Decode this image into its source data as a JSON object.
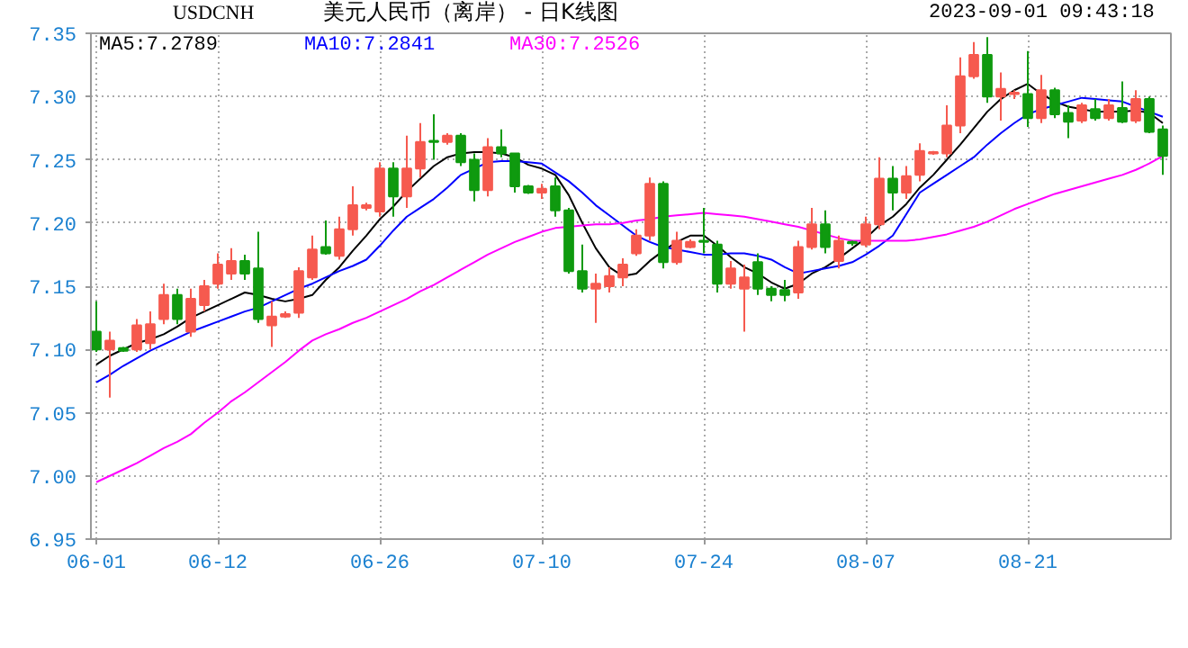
{
  "chart_data": {
    "type": "candlestick",
    "title": "美元人民币（离岸） - 日K线图",
    "annotations": [
      "USDCNH",
      "2023-09-01 09:43:18"
    ],
    "categories": [
      "06-01",
      null,
      null,
      null,
      null,
      null,
      null,
      null,
      null,
      "06-12",
      null,
      null,
      null,
      null,
      null,
      null,
      null,
      null,
      null,
      null,
      null,
      "06-26",
      null,
      null,
      null,
      null,
      null,
      null,
      null,
      null,
      null,
      null,
      null,
      "07-10",
      null,
      null,
      null,
      null,
      null,
      null,
      null,
      null,
      null,
      null,
      null,
      "07-24",
      null,
      null,
      null,
      null,
      null,
      null,
      null,
      null,
      null,
      null,
      null,
      "08-07",
      null,
      null,
      null,
      null,
      null,
      null,
      null,
      null,
      null,
      null,
      null,
      "08-21",
      null,
      null,
      null,
      null,
      null,
      null,
      null,
      null,
      null,
      null
    ],
    "ohlc": [
      [
        7.114,
        7.138,
        7.098,
        7.1
      ],
      [
        7.1,
        7.114,
        7.062,
        7.107
      ],
      [
        7.101,
        7.102,
        7.098,
        7.099
      ],
      [
        7.1,
        7.124,
        7.098,
        7.119
      ],
      [
        7.105,
        7.13,
        7.1,
        7.12
      ],
      [
        7.124,
        7.152,
        7.12,
        7.143
      ],
      [
        7.143,
        7.148,
        7.12,
        7.124
      ],
      [
        7.114,
        7.148,
        7.11,
        7.14
      ],
      [
        7.135,
        7.155,
        7.13,
        7.15
      ],
      [
        7.152,
        7.176,
        7.148,
        7.167
      ],
      [
        7.16,
        7.18,
        7.155,
        7.17
      ],
      [
        7.17,
        7.175,
        7.155,
        7.16
      ],
      [
        7.164,
        7.193,
        7.121,
        7.124
      ],
      [
        7.119,
        7.138,
        7.102,
        7.126
      ],
      [
        7.126,
        7.13,
        7.125,
        7.128
      ],
      [
        7.129,
        7.165,
        7.125,
        7.162
      ],
      [
        7.157,
        7.19,
        7.155,
        7.179
      ],
      [
        7.181,
        7.202,
        7.175,
        7.176
      ],
      [
        7.174,
        7.205,
        7.171,
        7.195
      ],
      [
        7.195,
        7.229,
        7.19,
        7.214
      ],
      [
        7.212,
        7.216,
        7.21,
        7.214
      ],
      [
        7.209,
        7.248,
        7.205,
        7.243
      ],
      [
        7.243,
        7.248,
        7.205,
        7.221
      ],
      [
        7.221,
        7.269,
        7.212,
        7.243
      ],
      [
        7.243,
        7.279,
        7.236,
        7.264
      ],
      [
        7.265,
        7.286,
        7.25,
        7.264
      ],
      [
        7.264,
        7.271,
        7.262,
        7.269
      ],
      [
        7.269,
        7.271,
        7.245,
        7.248
      ],
      [
        7.25,
        7.255,
        7.217,
        7.226
      ],
      [
        7.226,
        7.267,
        7.221,
        7.26
      ],
      [
        7.26,
        7.274,
        7.252,
        7.255
      ],
      [
        7.255,
        7.255,
        7.224,
        7.229
      ],
      [
        7.229,
        7.23,
        7.223,
        7.224
      ],
      [
        7.224,
        7.231,
        7.219,
        7.227
      ],
      [
        7.229,
        7.236,
        7.205,
        7.21
      ],
      [
        7.21,
        7.212,
        7.16,
        7.162
      ],
      [
        7.162,
        7.183,
        7.145,
        7.148
      ],
      [
        7.148,
        7.16,
        7.121,
        7.152
      ],
      [
        7.15,
        7.165,
        7.145,
        7.158
      ],
      [
        7.157,
        7.172,
        7.15,
        7.167
      ],
      [
        7.176,
        7.195,
        7.174,
        7.19
      ],
      [
        7.19,
        7.236,
        7.186,
        7.231
      ],
      [
        7.231,
        7.233,
        7.164,
        7.169
      ],
      [
        7.169,
        7.193,
        7.167,
        7.186
      ],
      [
        7.181,
        7.187,
        7.18,
        7.185
      ],
      [
        7.186,
        7.212,
        7.176,
        7.185
      ],
      [
        7.183,
        7.186,
        7.145,
        7.152
      ],
      [
        7.152,
        7.17,
        7.148,
        7.164
      ],
      [
        7.148,
        7.167,
        7.114,
        7.157
      ],
      [
        7.169,
        7.176,
        7.143,
        7.148
      ],
      [
        7.148,
        7.15,
        7.138,
        7.143
      ],
      [
        7.147,
        7.155,
        7.138,
        7.143
      ],
      [
        7.145,
        7.186,
        7.14,
        7.181
      ],
      [
        7.181,
        7.212,
        7.179,
        7.199
      ],
      [
        7.199,
        7.21,
        7.176,
        7.181
      ],
      [
        7.17,
        7.19,
        7.164,
        7.186
      ],
      [
        7.185,
        7.186,
        7.182,
        7.184
      ],
      [
        7.183,
        7.205,
        7.181,
        7.199
      ],
      [
        7.199,
        7.252,
        7.195,
        7.235
      ],
      [
        7.235,
        7.245,
        7.21,
        7.224
      ],
      [
        7.224,
        7.245,
        7.219,
        7.237
      ],
      [
        7.238,
        7.263,
        7.233,
        7.257
      ],
      [
        7.255,
        7.257,
        7.254,
        7.256
      ],
      [
        7.255,
        7.293,
        7.252,
        7.277
      ],
      [
        7.277,
        7.331,
        7.271,
        7.316
      ],
      [
        7.316,
        7.343,
        7.314,
        7.333
      ],
      [
        7.333,
        7.347,
        7.295,
        7.3
      ],
      [
        7.3,
        7.319,
        7.281,
        7.306
      ],
      [
        7.302,
        7.305,
        7.298,
        7.303
      ],
      [
        7.302,
        7.336,
        7.276,
        7.283
      ],
      [
        7.283,
        7.317,
        7.279,
        7.305
      ],
      [
        7.305,
        7.307,
        7.283,
        7.286
      ],
      [
        7.287,
        7.293,
        7.267,
        7.28
      ],
      [
        7.281,
        7.295,
        7.279,
        7.293
      ],
      [
        7.29,
        7.298,
        7.281,
        7.283
      ],
      [
        7.283,
        7.298,
        7.281,
        7.293
      ],
      [
        7.291,
        7.312,
        7.279,
        7.28
      ],
      [
        7.281,
        7.305,
        7.279,
        7.298
      ],
      [
        7.298,
        7.3,
        7.271,
        7.272
      ],
      [
        7.274,
        7.277,
        7.238,
        7.253
      ]
    ],
    "colors": [
      "#0f9a0f",
      "#f65a4f",
      "#0f9a0f",
      "#f65a4f",
      "#f65a4f",
      "#f65a4f",
      "#0f9a0f",
      "#f65a4f",
      "#f65a4f",
      "#f65a4f",
      "#f65a4f",
      "#0f9a0f",
      "#0f9a0f",
      "#f65a4f",
      "#f65a4f",
      "#f65a4f",
      "#f65a4f",
      "#0f9a0f",
      "#f65a4f",
      "#f65a4f",
      "#f65a4f",
      "#f65a4f",
      "#0f9a0f",
      "#f65a4f",
      "#f65a4f",
      "#0f9a0f",
      "#f65a4f",
      "#0f9a0f",
      "#0f9a0f",
      "#f65a4f",
      "#0f9a0f",
      "#0f9a0f",
      "#0f9a0f",
      "#f65a4f",
      "#0f9a0f",
      "#0f9a0f",
      "#0f9a0f",
      "#f65a4f",
      "#f65a4f",
      "#f65a4f",
      "#f65a4f",
      "#f65a4f",
      "#0f9a0f",
      "#f65a4f",
      "#f65a4f",
      "#0f9a0f",
      "#0f9a0f",
      "#f65a4f",
      "#f65a4f",
      "#0f9a0f",
      "#0f9a0f",
      "#0f9a0f",
      "#f65a4f",
      "#f65a4f",
      "#0f9a0f",
      "#f65a4f",
      "#0f9a0f",
      "#f65a4f",
      "#f65a4f",
      "#0f9a0f",
      "#f65a4f",
      "#f65a4f",
      "#f65a4f",
      "#f65a4f",
      "#f65a4f",
      "#f65a4f",
      "#0f9a0f",
      "#f65a4f",
      "#f65a4f",
      "#0f9a0f",
      "#f65a4f",
      "#0f9a0f",
      "#0f9a0f",
      "#f65a4f",
      "#0f9a0f",
      "#f65a4f",
      "#0f9a0f",
      "#f65a4f",
      "#0f9a0f",
      "#0f9a0f"
    ],
    "series": [
      {
        "type": "line",
        "name": "MA5:7.2789",
        "color": "#000000",
        "values": [
          7.088,
          7.095,
          7.1,
          7.105,
          7.108,
          7.112,
          7.118,
          7.125,
          7.13,
          7.135,
          7.14,
          7.145,
          7.143,
          7.14,
          7.138,
          7.14,
          7.143,
          7.155,
          7.165,
          7.178,
          7.19,
          7.203,
          7.213,
          7.225,
          7.235,
          7.245,
          7.252,
          7.255,
          7.256,
          7.256,
          7.255,
          7.252,
          7.246,
          7.243,
          7.238,
          7.222,
          7.2,
          7.18,
          7.165,
          7.158,
          7.16,
          7.17,
          7.178,
          7.185,
          7.19,
          7.19,
          7.182,
          7.173,
          7.165,
          7.16,
          7.153,
          7.148,
          7.152,
          7.16,
          7.165,
          7.172,
          7.18,
          7.188,
          7.198,
          7.205,
          7.215,
          7.228,
          7.238,
          7.25,
          7.262,
          7.275,
          7.288,
          7.298,
          7.305,
          7.31,
          7.302,
          7.296,
          7.292,
          7.29,
          7.288,
          7.288,
          7.288,
          7.289,
          7.287,
          7.279
        ]
      },
      {
        "type": "line",
        "name": "MA10:7.2841",
        "color": "#0000ff",
        "values": [
          7.074,
          7.08,
          7.087,
          7.093,
          7.099,
          7.104,
          7.109,
          7.114,
          7.118,
          7.122,
          7.126,
          7.13,
          7.133,
          7.138,
          7.143,
          7.148,
          7.152,
          7.157,
          7.162,
          7.166,
          7.171,
          7.182,
          7.194,
          7.205,
          7.212,
          7.219,
          7.228,
          7.238,
          7.243,
          7.248,
          7.249,
          7.249,
          7.248,
          7.247,
          7.24,
          7.233,
          7.224,
          7.214,
          7.206,
          7.198,
          7.19,
          7.185,
          7.181,
          7.179,
          7.177,
          7.175,
          7.175,
          7.176,
          7.176,
          7.174,
          7.171,
          7.165,
          7.16,
          7.162,
          7.164,
          7.166,
          7.169,
          7.175,
          7.182,
          7.19,
          7.207,
          7.224,
          7.231,
          7.238,
          7.245,
          7.252,
          7.262,
          7.271,
          7.279,
          7.286,
          7.29,
          7.293,
          7.296,
          7.299,
          7.298,
          7.297,
          7.296,
          7.292,
          7.288,
          7.284
        ]
      },
      {
        "type": "line",
        "name": "MA30:7.2526",
        "color": "#ff00ff",
        "values": [
          6.995,
          7.0,
          7.005,
          7.01,
          7.016,
          7.022,
          7.027,
          7.033,
          7.042,
          7.05,
          7.059,
          7.066,
          7.074,
          7.082,
          7.09,
          7.099,
          7.107,
          7.112,
          7.116,
          7.121,
          7.125,
          7.13,
          7.135,
          7.14,
          7.146,
          7.151,
          7.157,
          7.163,
          7.169,
          7.175,
          7.18,
          7.185,
          7.189,
          7.193,
          7.196,
          7.197,
          7.198,
          7.199,
          7.199,
          7.2,
          7.202,
          7.203,
          7.205,
          7.206,
          7.207,
          7.208,
          7.207,
          7.206,
          7.205,
          7.203,
          7.201,
          7.199,
          7.197,
          7.194,
          7.191,
          7.188,
          7.186,
          7.186,
          7.186,
          7.186,
          7.186,
          7.187,
          7.189,
          7.191,
          7.194,
          7.197,
          7.201,
          7.206,
          7.211,
          7.215,
          7.219,
          7.223,
          7.226,
          7.229,
          7.232,
          7.235,
          7.238,
          7.242,
          7.247,
          7.253
        ]
      }
    ],
    "ylim": [
      6.95,
      7.35
    ],
    "yticks": [
      {
        "value": 6.95,
        "label": "6.95"
      },
      {
        "value": 7.0,
        "label": "7.00"
      },
      {
        "value": 7.05,
        "label": "7.05"
      },
      {
        "value": 7.1,
        "label": "7.10"
      },
      {
        "value": 7.15,
        "label": "7.15"
      },
      {
        "value": 7.2,
        "label": "7.20"
      },
      {
        "value": 7.25,
        "label": "7.25"
      },
      {
        "value": 7.3,
        "label": "7.30"
      },
      {
        "value": 7.35,
        "label": "7.35"
      }
    ],
    "grid": true,
    "legend": "top left"
  }
}
